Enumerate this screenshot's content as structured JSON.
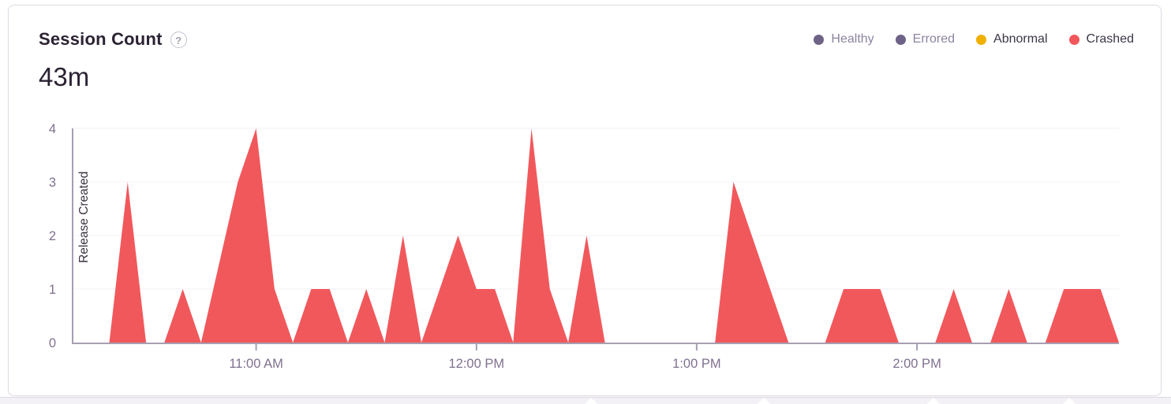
{
  "card": {
    "title": "Session Count",
    "help_icon": "?",
    "total": "43m"
  },
  "legend": [
    {
      "label": "Healthy",
      "color": "#6f6287",
      "text_color": "#8d83a0"
    },
    {
      "label": "Errored",
      "color": "#6f6287",
      "text_color": "#8d83a0"
    },
    {
      "label": "Abnormal",
      "color": "#f0b000",
      "text_color": "#3c3548"
    },
    {
      "label": "Crashed",
      "color": "#f2575c",
      "text_color": "#3c3548"
    }
  ],
  "chart_data": {
    "type": "area",
    "title": "Session Count",
    "total_label": "43m",
    "grid": "horizontal-faint",
    "legend_position": "top-right",
    "ylim": [
      0,
      4
    ],
    "yticks": [
      0,
      1,
      2,
      3,
      4
    ],
    "x_domain": [
      "10:10",
      "14:55"
    ],
    "xticks": [
      {
        "time": "11:00",
        "label": "11:00 AM"
      },
      {
        "time": "12:00",
        "label": "12:00 PM"
      },
      {
        "time": "13:00",
        "label": "1:00 PM"
      },
      {
        "time": "14:00",
        "label": "2:00 PM"
      }
    ],
    "annotation": {
      "label": "Release Created",
      "time": "10:10"
    },
    "colors": {
      "area": "#f1585c",
      "axis_line": "#a79fb2",
      "axis_text": "#80708f",
      "grid_line": "#f4f2f7",
      "annotation_line": "#978da8",
      "annotation_text": "#39323f"
    },
    "series": [
      {
        "name": "Crashed",
        "color": "#f1585c",
        "points": [
          [
            "10:10",
            0
          ],
          [
            "10:15",
            0
          ],
          [
            "10:20",
            0
          ],
          [
            "10:25",
            3
          ],
          [
            "10:30",
            0
          ],
          [
            "10:35",
            0
          ],
          [
            "10:40",
            1
          ],
          [
            "10:45",
            0
          ],
          [
            "10:50",
            1.5
          ],
          [
            "10:55",
            3
          ],
          [
            "11:00",
            4
          ],
          [
            "11:05",
            1
          ],
          [
            "11:10",
            0
          ],
          [
            "11:15",
            1
          ],
          [
            "11:20",
            1
          ],
          [
            "11:25",
            0
          ],
          [
            "11:30",
            1
          ],
          [
            "11:35",
            0
          ],
          [
            "11:40",
            2
          ],
          [
            "11:45",
            0
          ],
          [
            "11:50",
            1
          ],
          [
            "11:55",
            2
          ],
          [
            "12:00",
            1
          ],
          [
            "12:05",
            1
          ],
          [
            "12:10",
            0
          ],
          [
            "12:15",
            4
          ],
          [
            "12:20",
            1
          ],
          [
            "12:25",
            0
          ],
          [
            "12:30",
            2
          ],
          [
            "12:35",
            0
          ],
          [
            "12:40",
            0
          ],
          [
            "12:45",
            0
          ],
          [
            "12:50",
            0
          ],
          [
            "12:55",
            0
          ],
          [
            "13:00",
            0
          ],
          [
            "13:05",
            0
          ],
          [
            "13:10",
            3
          ],
          [
            "13:15",
            2
          ],
          [
            "13:20",
            1
          ],
          [
            "13:25",
            0
          ],
          [
            "13:30",
            0
          ],
          [
            "13:35",
            0
          ],
          [
            "13:40",
            1
          ],
          [
            "13:45",
            1
          ],
          [
            "13:50",
            1
          ],
          [
            "13:55",
            0
          ],
          [
            "14:00",
            0
          ],
          [
            "14:05",
            0
          ],
          [
            "14:10",
            1
          ],
          [
            "14:15",
            0
          ],
          [
            "14:20",
            0
          ],
          [
            "14:25",
            1
          ],
          [
            "14:30",
            0
          ],
          [
            "14:35",
            0
          ],
          [
            "14:40",
            1
          ],
          [
            "14:45",
            1
          ],
          [
            "14:50",
            1
          ],
          [
            "14:55",
            0
          ]
        ]
      }
    ]
  }
}
